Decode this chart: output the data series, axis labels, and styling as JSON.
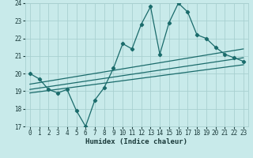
{
  "xlabel": "Humidex (Indice chaleur)",
  "bg_color": "#c8eaea",
  "grid_color": "#a8d0d0",
  "line_color": "#1a6b6b",
  "xlim": [
    -0.5,
    23.5
  ],
  "ylim": [
    17,
    24
  ],
  "yticks": [
    17,
    18,
    19,
    20,
    21,
    22,
    23,
    24
  ],
  "xticks": [
    0,
    1,
    2,
    3,
    4,
    5,
    6,
    7,
    8,
    9,
    10,
    11,
    12,
    13,
    14,
    15,
    16,
    17,
    18,
    19,
    20,
    21,
    22,
    23
  ],
  "series1_x": [
    0,
    1,
    2,
    3,
    4,
    5,
    6,
    7,
    8,
    9,
    10,
    11,
    12,
    13,
    14,
    15,
    16,
    17,
    18,
    19,
    20,
    21,
    22,
    23
  ],
  "series1_y": [
    20.0,
    19.7,
    19.1,
    18.9,
    19.1,
    17.9,
    17.0,
    18.5,
    19.2,
    20.3,
    21.7,
    21.4,
    22.8,
    23.8,
    21.1,
    22.9,
    24.0,
    23.5,
    22.2,
    22.0,
    21.5,
    21.1,
    20.9,
    20.7
  ],
  "trend1_x": [
    0,
    23
  ],
  "trend1_y": [
    19.4,
    21.4
  ],
  "trend2_x": [
    0,
    23
  ],
  "trend2_y": [
    19.1,
    20.9
  ],
  "trend3_x": [
    0,
    23
  ],
  "trend3_y": [
    18.9,
    20.5
  ]
}
